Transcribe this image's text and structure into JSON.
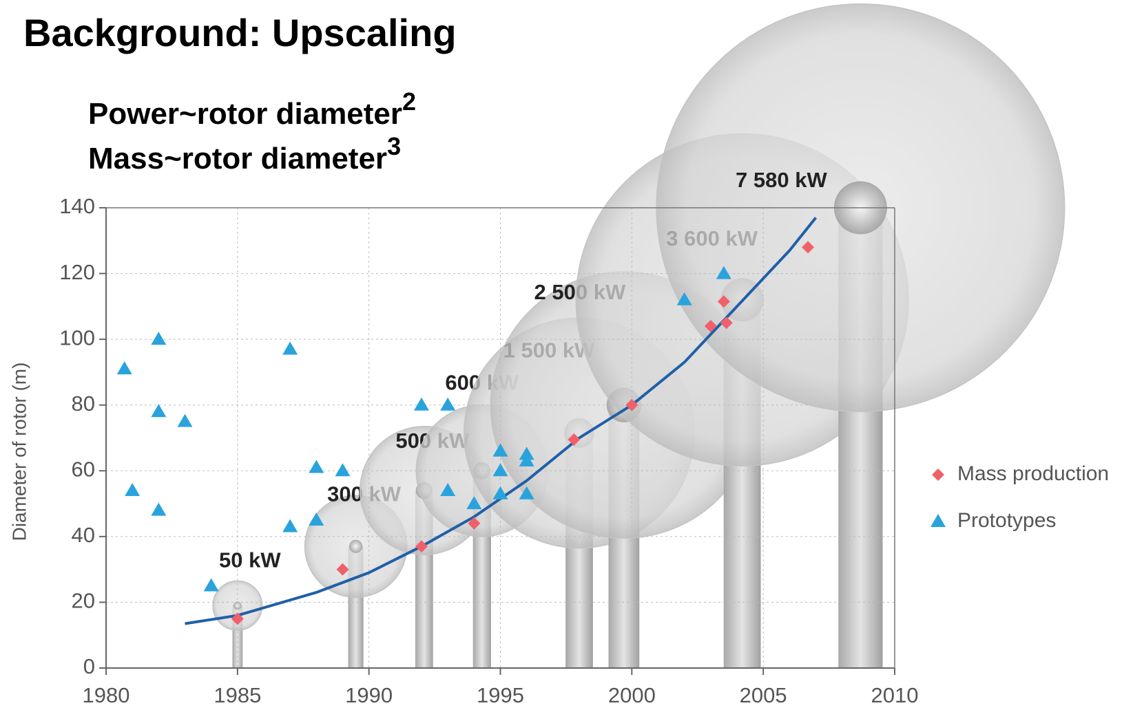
{
  "title": "Background: Upscaling",
  "subtitle": [
    {
      "text": "Power~rotor diameter",
      "sup": "2"
    },
    {
      "text": "Mass~rotor diameter",
      "sup": "3"
    }
  ],
  "chart_data": {
    "type": "scatter",
    "y_label": "Diameter of rotor (m)",
    "xlim": [
      1980,
      2010
    ],
    "xticks": [
      1980,
      1985,
      1990,
      1995,
      2000,
      2005,
      2010
    ],
    "ylim": [
      0,
      140
    ],
    "yticks": [
      0,
      20,
      40,
      60,
      80,
      100,
      120,
      140
    ],
    "grid": true,
    "legend": "right",
    "series": [
      {
        "name": "Mass production",
        "color": "#f0606a",
        "marker": "diamond",
        "x": [
          1985,
          1989,
          1992,
          1994,
          1997.8,
          2000,
          2003,
          2003.6,
          2003.5,
          2006.7
        ],
        "values": [
          15,
          30,
          37,
          44,
          69.5,
          80,
          104,
          105,
          111.5,
          128
        ]
      },
      {
        "name": "Prototypes",
        "color": "#29a3dc",
        "marker": "triangle",
        "x": [
          1980.7,
          1981,
          1982,
          1982,
          1982,
          1983,
          1984,
          1987,
          1987,
          1988,
          1988,
          1989,
          1992,
          1993,
          1993,
          1994,
          1995,
          1995,
          1995,
          1996,
          1996,
          1996,
          2002,
          2003.5
        ],
        "values": [
          91,
          54,
          100,
          78,
          48,
          75,
          25,
          97,
          43,
          61,
          45,
          60,
          80,
          80,
          54,
          50,
          66,
          60,
          53,
          65,
          63,
          53,
          112,
          120
        ]
      }
    ],
    "trend": {
      "color": "#1f5fa8",
      "x": [
        1983,
        1985,
        1988,
        1990,
        1992,
        1994,
        1996,
        1998,
        2000,
        2002,
        2004,
        2006,
        2007
      ],
      "values": [
        13.5,
        16,
        23,
        29,
        37,
        46,
        57,
        70,
        80,
        93,
        110,
        127,
        137
      ]
    },
    "turbines": [
      {
        "label": "50 kW",
        "x": 1985,
        "hub": 19,
        "diameter": 15
      },
      {
        "label": "300 kW",
        "x": 1989.5,
        "hub": 37,
        "diameter": 31
      },
      {
        "label": "500 kW",
        "x": 1992.1,
        "hub": 54,
        "diameter": 39
      },
      {
        "label": "600 kW",
        "x": 1994.3,
        "hub": 60,
        "diameter": 40
      },
      {
        "label": "1 500 kW",
        "x": 1998,
        "hub": 71.5,
        "diameter": 70
      },
      {
        "label": "2 500 kW",
        "x": 1999.7,
        "hub": 80,
        "diameter": 81
      },
      {
        "label": "3 600 kW",
        "x": 2004.2,
        "hub": 112,
        "diameter": 101
      },
      {
        "label": "7 580 kW",
        "x": 2008.7,
        "hub": 140,
        "diameter": 124
      }
    ]
  }
}
